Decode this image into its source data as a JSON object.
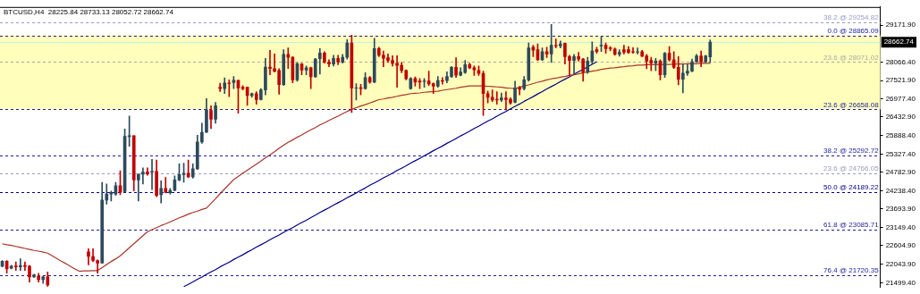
{
  "chart_data": {
    "type": "candlestick",
    "title": "BTCUSD,H4  28225.84 28733.13 28052.72 28662.74",
    "categories": [
      null,
      null,
      null,
      null,
      null,
      null,
      null,
      null,
      null,
      null,
      null,
      null,
      null,
      null,
      null,
      null,
      null,
      null,
      null,
      null,
      null,
      null,
      null,
      null,
      null,
      null,
      null,
      null,
      null,
      null,
      null,
      null,
      null,
      null,
      null,
      null,
      null,
      null,
      null,
      null,
      null,
      null,
      null,
      null,
      null,
      null,
      null,
      null,
      null,
      null,
      null,
      null,
      null,
      null,
      null,
      null,
      null,
      null,
      null,
      null,
      null,
      null,
      null,
      null,
      null,
      null,
      null,
      null,
      null,
      null,
      null,
      null,
      null,
      null,
      null,
      null,
      null,
      null,
      null,
      null,
      null,
      null,
      null,
      null,
      null,
      null,
      null,
      null,
      null,
      null,
      null,
      null,
      null,
      null,
      null,
      null,
      null,
      null,
      null,
      null,
      null,
      null,
      null,
      null,
      null,
      null,
      null,
      null,
      null,
      null,
      null,
      null,
      null,
      null,
      null,
      null,
      null,
      null,
      null,
      null,
      null,
      null,
      null,
      null,
      null,
      null,
      null,
      null,
      null,
      null,
      null,
      null,
      null,
      null,
      null,
      null,
      null,
      null,
      null,
      null,
      null,
      null,
      null,
      null,
      null,
      null,
      null,
      null,
      null,
      null,
      null,
      null,
      null,
      null,
      null,
      null,
      null,
      null,
      null,
      null,
      null,
      null,
      null,
      null,
      null,
      null,
      null,
      null,
      null,
      null,
      null,
      null,
      null,
      null,
      null,
      null,
      null,
      null,
      null,
      null,
      null,
      null,
      null,
      null,
      null,
      null,
      null,
      null,
      null,
      null,
      null,
      null,
      null,
      null
    ],
    "ohlc": [
      [
        21990,
        22160,
        21970,
        22140
      ],
      [
        22140,
        22160,
        21780,
        21910
      ],
      [
        21930,
        22020,
        21910,
        21990
      ],
      [
        22000,
        22120,
        21860,
        21970
      ],
      [
        21970,
        22210,
        21860,
        22010
      ],
      [
        22010,
        22120,
        21860,
        21980
      ],
      [
        21990,
        22010,
        21520,
        21670
      ],
      [
        21670,
        21750,
        21660,
        21730
      ],
      [
        21690,
        21780,
        21520,
        21590
      ],
      [
        21590,
        21690,
        21480,
        21670
      ],
      [
        21670,
        21820,
        21390,
        21430
      ],
      null,
      null,
      null,
      null,
      null,
      null,
      null,
      null,
      [
        22420,
        22510,
        22030,
        22280
      ],
      [
        22280,
        22510,
        22120,
        22160
      ],
      [
        22160,
        22180,
        21780,
        22080
      ],
      [
        22080,
        24490,
        22080,
        23960
      ],
      [
        23960,
        24440,
        23840,
        24140
      ],
      [
        24140,
        24230,
        23930,
        24190
      ],
      [
        24140,
        24490,
        24100,
        24390
      ],
      [
        24390,
        24830,
        24120,
        24190
      ],
      [
        24210,
        26080,
        24190,
        25860
      ],
      [
        25850,
        26460,
        25560,
        25880
      ],
      [
        25880,
        25880,
        24230,
        24560
      ],
      [
        24560,
        24730,
        23930,
        24730
      ],
      [
        24730,
        24920,
        24440,
        24790
      ],
      [
        24800,
        24920,
        24700,
        24740
      ],
      [
        24790,
        25170,
        24270,
        24810
      ],
      [
        24810,
        25150,
        24060,
        24100
      ],
      [
        24120,
        24530,
        23870,
        24310
      ],
      [
        24310,
        24630,
        24170,
        24190
      ],
      [
        24180,
        24310,
        24140,
        24250
      ],
      [
        24250,
        24680,
        24230,
        24560
      ],
      [
        24560,
        25040,
        24530,
        24720
      ],
      [
        24720,
        25060,
        24490,
        24760
      ],
      [
        24760,
        25150,
        24630,
        24650
      ],
      [
        24650,
        25040,
        24610,
        24890
      ],
      [
        24890,
        25890,
        24870,
        25690
      ],
      [
        25690,
        26250,
        25650,
        25980
      ],
      [
        25980,
        26980,
        25970,
        26650
      ],
      [
        26630,
        26770,
        26090,
        26370
      ],
      [
        26370,
        26870,
        26250,
        26770
      ],
      [
        27320,
        27440,
        27190,
        27280
      ],
      [
        27280,
        27600,
        27130,
        27450
      ],
      [
        27450,
        27540,
        27040,
        27430
      ],
      [
        27460,
        27640,
        27280,
        27530
      ],
      [
        27530,
        27530,
        26550,
        27300
      ],
      [
        27320,
        27370,
        27240,
        27280
      ],
      [
        27320,
        27330,
        26780,
        27070
      ],
      [
        27070,
        27150,
        27020,
        27130
      ],
      [
        27130,
        27190,
        26810,
        26950
      ],
      [
        26950,
        27280,
        26940,
        27240
      ],
      [
        27240,
        28180,
        27090,
        27920
      ],
      [
        27920,
        28420,
        27690,
        27880
      ],
      [
        27870,
        28310,
        27770,
        27800
      ],
      [
        27820,
        27870,
        27110,
        27400
      ],
      [
        27400,
        28440,
        27370,
        28300
      ],
      [
        28300,
        28490,
        27880,
        28210
      ],
      [
        28210,
        28230,
        27450,
        27540
      ],
      [
        27540,
        28060,
        27500,
        28020
      ],
      [
        28010,
        28030,
        27690,
        27830
      ],
      [
        27830,
        27950,
        27690,
        27900
      ],
      [
        27900,
        27920,
        27280,
        27630
      ],
      [
        27630,
        28180,
        27610,
        28160
      ],
      [
        28170,
        28470,
        27710,
        28340
      ],
      [
        28340,
        28380,
        28040,
        28070
      ],
      [
        28070,
        28140,
        27930,
        28010
      ],
      [
        28010,
        28270,
        27950,
        28180
      ],
      [
        28180,
        28270,
        27990,
        28070
      ],
      [
        28070,
        28300,
        28040,
        28210
      ],
      [
        28210,
        28740,
        28160,
        28640
      ],
      [
        28640,
        28870,
        26570,
        27300
      ],
      [
        27290,
        27430,
        26940,
        27300
      ],
      [
        27310,
        27410,
        27090,
        27280
      ],
      [
        27280,
        27750,
        27260,
        27610
      ],
      [
        27610,
        27640,
        27440,
        27470
      ],
      [
        27470,
        28780,
        27450,
        28470
      ],
      [
        28470,
        28510,
        28230,
        28270
      ],
      [
        28270,
        28400,
        27930,
        28180
      ],
      [
        28200,
        28310,
        28060,
        28120
      ],
      [
        28120,
        28260,
        27950,
        28030
      ],
      [
        28030,
        28260,
        27320,
        27970
      ],
      [
        27970,
        28060,
        27750,
        27820
      ],
      [
        27820,
        27840,
        27540,
        27570
      ],
      [
        27280,
        27610,
        27260,
        27580
      ],
      [
        27580,
        27630,
        27350,
        27470
      ],
      [
        27510,
        27580,
        27280,
        27470
      ],
      [
        27490,
        27580,
        27320,
        27510
      ],
      [
        27510,
        27800,
        27370,
        27420
      ],
      [
        27430,
        27450,
        27130,
        27350
      ],
      [
        27350,
        27640,
        27320,
        27520
      ],
      [
        27520,
        27610,
        27410,
        27500
      ],
      [
        27520,
        27780,
        27450,
        27640
      ],
      [
        27640,
        27940,
        27610,
        27910
      ],
      [
        27910,
        28200,
        27610,
        27680
      ],
      [
        27680,
        27900,
        27660,
        27770
      ],
      [
        27760,
        28120,
        27730,
        27990
      ],
      [
        27990,
        28040,
        27870,
        27900
      ],
      [
        27900,
        27950,
        27670,
        27840
      ],
      [
        27820,
        27950,
        27670,
        27730
      ],
      [
        27730,
        27800,
        26480,
        27130
      ],
      [
        27130,
        27210,
        26850,
        27020
      ],
      [
        27020,
        27240,
        26890,
        26940
      ],
      [
        26960,
        27190,
        26810,
        26940
      ],
      [
        26940,
        27150,
        26890,
        27000
      ],
      [
        27000,
        27190,
        26640,
        26950
      ],
      [
        26960,
        27010,
        26810,
        26850
      ],
      [
        26870,
        27500,
        26850,
        27300
      ],
      [
        27300,
        27350,
        27090,
        27260
      ],
      [
        27280,
        27640,
        27240,
        27540
      ],
      [
        27540,
        28640,
        27500,
        28490
      ],
      [
        28510,
        28570,
        28230,
        28420
      ],
      [
        28440,
        28610,
        28120,
        28140
      ],
      [
        28140,
        28490,
        28120,
        28380
      ],
      [
        28380,
        28510,
        28200,
        28310
      ],
      [
        28310,
        29190,
        28060,
        28570
      ],
      [
        28570,
        28760,
        28490,
        28550
      ],
      [
        28550,
        28700,
        28490,
        28610
      ],
      [
        28630,
        28640,
        28010,
        28230
      ],
      [
        28230,
        28270,
        27670,
        28120
      ],
      [
        28120,
        28300,
        27710,
        28230
      ],
      [
        28230,
        28360,
        28100,
        28160
      ],
      [
        28160,
        28180,
        27500,
        27780
      ],
      [
        27780,
        28210,
        27730,
        28100
      ],
      [
        28100,
        28670,
        28010,
        28400
      ],
      [
        28440,
        28510,
        28330,
        28380
      ],
      [
        28550,
        28830,
        28380,
        28570
      ],
      [
        28570,
        28640,
        28330,
        28470
      ],
      [
        28490,
        28530,
        28400,
        28470
      ],
      [
        28460,
        28490,
        28270,
        28300
      ],
      [
        28300,
        28440,
        28240,
        28360
      ],
      [
        28440,
        28570,
        28310,
        28360
      ],
      [
        28440,
        28530,
        28330,
        28350
      ],
      [
        28380,
        28500,
        28330,
        28360
      ],
      [
        28360,
        28490,
        28310,
        28380
      ],
      [
        28380,
        28420,
        28230,
        28240
      ],
      [
        28250,
        28300,
        27870,
        28100
      ],
      [
        28120,
        28210,
        27810,
        28040
      ],
      [
        28040,
        28180,
        27810,
        28100
      ],
      [
        28100,
        28140,
        27540,
        27690
      ],
      [
        27690,
        28360,
        27610,
        28330
      ],
      [
        28330,
        28530,
        28100,
        28140
      ],
      [
        28140,
        28380,
        27880,
        27910
      ],
      [
        27910,
        28230,
        27390,
        27560
      ],
      [
        27560,
        28010,
        27150,
        27740
      ],
      [
        27740,
        27990,
        27670,
        27800
      ],
      [
        27800,
        28160,
        27780,
        28080
      ],
      [
        28080,
        28300,
        28060,
        28250
      ],
      [
        28250,
        28400,
        27930,
        28080
      ],
      [
        28080,
        28270,
        28060,
        28250
      ],
      [
        28225.84,
        28733.13,
        28052.72,
        28662.74
      ],
      null,
      null,
      null,
      null,
      null,
      null,
      null,
      null,
      null,
      null,
      null,
      null,
      null,
      null,
      null,
      null,
      null,
      null,
      null,
      null,
      null,
      null,
      null,
      null,
      null,
      null,
      null,
      null,
      null,
      null,
      null,
      null,
      null,
      null,
      null,
      null,
      null
    ],
    "series": [
      {
        "type": "line",
        "color": "#a8342a",
        "values": [
          22660,
          22630,
          22610,
          22580,
          22550,
          22520,
          22490,
          22460,
          22440,
          22410,
          22380,
          22300,
          22220,
          22140,
          22070,
          21990,
          21910,
          21840,
          21850,
          21850,
          21860,
          21860,
          21950,
          22040,
          22130,
          22210,
          22300,
          22420,
          22540,
          22660,
          22780,
          22900,
          23020,
          23080,
          23140,
          23200,
          23250,
          23310,
          23370,
          23430,
          23480,
          23540,
          23590,
          23630,
          23680,
          23720,
          23860,
          24000,
          24150,
          24290,
          24430,
          24570,
          24660,
          24760,
          24850,
          24940,
          25030,
          25120,
          25220,
          25310,
          25400,
          25500,
          25590,
          25680,
          25750,
          25830,
          25900,
          25980,
          26050,
          26120,
          26200,
          26260,
          26330,
          26400,
          26460,
          26530,
          26600,
          26660,
          26710,
          26760,
          26800,
          26850,
          26900,
          26950,
          26970,
          27000,
          27020,
          27050,
          27080,
          27100,
          27130,
          27140,
          27150,
          27170,
          27180,
          27190,
          27200,
          27230,
          27250,
          27270,
          27290,
          27320,
          27340,
          27360,
          27360,
          27360,
          27360,
          27350,
          27340,
          27330,
          27320,
          27300,
          27290,
          27280,
          27320,
          27360,
          27390,
          27430,
          27470,
          27500,
          27540,
          27570,
          27590,
          27620,
          27640,
          27670,
          27690,
          27720,
          27750,
          27770,
          27800,
          27820,
          27850,
          27870,
          27890,
          27900,
          27920,
          27930,
          27950,
          27960,
          27980,
          27980,
          27990,
          27990,
          27990,
          28000,
          28000,
          28000,
          28010,
          28010,
          28010,
          28020,
          28020,
          28020,
          28030,
          28030,
          28030,
          null,
          null,
          null,
          null,
          null,
          null,
          null,
          null,
          null,
          null,
          null,
          null,
          null,
          null,
          null,
          null,
          null,
          null,
          null,
          null,
          null,
          null,
          null,
          null,
          null,
          null,
          null,
          null,
          null,
          null,
          null,
          null,
          null,
          null,
          null,
          null,
          null
        ]
      },
      {
        "type": "line",
        "color": "#00008b",
        "values": [
          null,
          null,
          null,
          null,
          null,
          null,
          null,
          null,
          null,
          null,
          null,
          null,
          null,
          null,
          null,
          null,
          null,
          null,
          null,
          null,
          null,
          null,
          null,
          null,
          null,
          null,
          null,
          null,
          null,
          null,
          null,
          null,
          null,
          null,
          null,
          null,
          null,
          null,
          null,
          null,
          21380,
          21450,
          21520,
          21600,
          21670,
          21750,
          21820,
          21890,
          21970,
          22040,
          22110,
          22190,
          22260,
          22330,
          22410,
          22480,
          22560,
          22630,
          22700,
          22780,
          22850,
          22920,
          23000,
          23070,
          23140,
          23220,
          23290,
          23360,
          23440,
          23510,
          23590,
          23660,
          23730,
          23810,
          23880,
          23950,
          24030,
          24100,
          24170,
          24250,
          24320,
          24400,
          24470,
          24540,
          24620,
          24690,
          24760,
          24840,
          24910,
          24980,
          25060,
          25130,
          25200,
          25280,
          25350,
          25430,
          25500,
          25570,
          25650,
          25720,
          25790,
          25870,
          25940,
          26010,
          26090,
          26160,
          26240,
          26310,
          26380,
          26460,
          26530,
          26600,
          26680,
          26750,
          26820,
          26900,
          26970,
          27040,
          27120,
          27190,
          27270,
          27340,
          27410,
          27490,
          27560,
          27630,
          27710,
          27780,
          27850,
          27930,
          28000,
          28080,
          null,
          null,
          null,
          null,
          null,
          null,
          null,
          null,
          null,
          null,
          null,
          null,
          null,
          null,
          null,
          null,
          null,
          null,
          null,
          null,
          null,
          null,
          null,
          null,
          null,
          null,
          null,
          null,
          null,
          null,
          null,
          null,
          null,
          null,
          null,
          null,
          null,
          null,
          null,
          null,
          null,
          null,
          null,
          null,
          null,
          null,
          null,
          null,
          null,
          null,
          null,
          null,
          null,
          null,
          null,
          null,
          null,
          null,
          null,
          null,
          null,
          null
        ]
      }
    ],
    "ylim": [
      21370,
      29710
    ],
    "yticks": [
      {
        "value": 29171.9,
        "label": "29171.90"
      },
      {
        "value": 28066.4,
        "label": "28066.40"
      },
      {
        "value": 27521.9,
        "label": "27521.90"
      },
      {
        "value": 26977.4,
        "label": "26977.40"
      },
      {
        "value": 26432.9,
        "label": "26432.90"
      },
      {
        "value": 25888.4,
        "label": "25888.40"
      },
      {
        "value": 25327.4,
        "label": "25327.40"
      },
      {
        "value": 24782.9,
        "label": "24782.90"
      },
      {
        "value": 24238.4,
        "label": "24238.40"
      },
      {
        "value": 23693.9,
        "label": "23693.90"
      },
      {
        "value": 23149.4,
        "label": "23149.40"
      },
      {
        "value": 22604.9,
        "label": "22604.90"
      },
      {
        "value": 22043.9,
        "label": "22043.90"
      },
      {
        "value": 21499.4,
        "label": "21499.40"
      }
    ],
    "tick_labels": "y",
    "legend": false,
    "marker": "none",
    "bands": [
      {
        "axis": "y",
        "from": 26658.08,
        "to": 28865.09,
        "color": "#ffffbb"
      }
    ],
    "ref_lines": [
      {
        "axis": "y",
        "value": 29254.82,
        "label": "38.2 @ 29254.82",
        "color": "#9a9ac4",
        "line_style": "dashed"
      },
      {
        "axis": "y",
        "value": 28865.09,
        "label": "0.0 @ 28865.09",
        "color": "#1c1ca0",
        "line_style": "dashed"
      },
      {
        "axis": "y",
        "value": 28662.74,
        "label": "28662.74",
        "color": "#c8ecec",
        "line_style": "solid"
      },
      {
        "axis": "y",
        "value": 28071.02,
        "label": "23.6 @ 28071.02",
        "color": "#a8a8a8",
        "line_style": "dashed"
      },
      {
        "axis": "y",
        "value": 26658.08,
        "label": "23.6 @ 26658.08",
        "color": "#1c1ca0",
        "line_style": "dashed"
      },
      {
        "axis": "y",
        "value": 25292.72,
        "label": "38.2 @ 25292.72",
        "color": "#1c1ca0",
        "line_style": "dashed"
      },
      {
        "axis": "y",
        "value": 24766.05,
        "label": "23.6 @ 24766.05",
        "color": "#9a9ac4",
        "line_style": "dashed"
      },
      {
        "axis": "y",
        "value": 24189.22,
        "label": "50.0 @ 24189.22",
        "color": "#00008b",
        "line_style": "dashed"
      },
      {
        "axis": "y",
        "value": 23085.71,
        "label": "61.8 @ 23085.71",
        "color": "#1c1ca0",
        "line_style": "dashed"
      },
      {
        "axis": "y",
        "value": 21720.35,
        "label": "76.4 @ 21720.35",
        "color": "#1c1ca0",
        "line_style": "dashed"
      }
    ]
  }
}
